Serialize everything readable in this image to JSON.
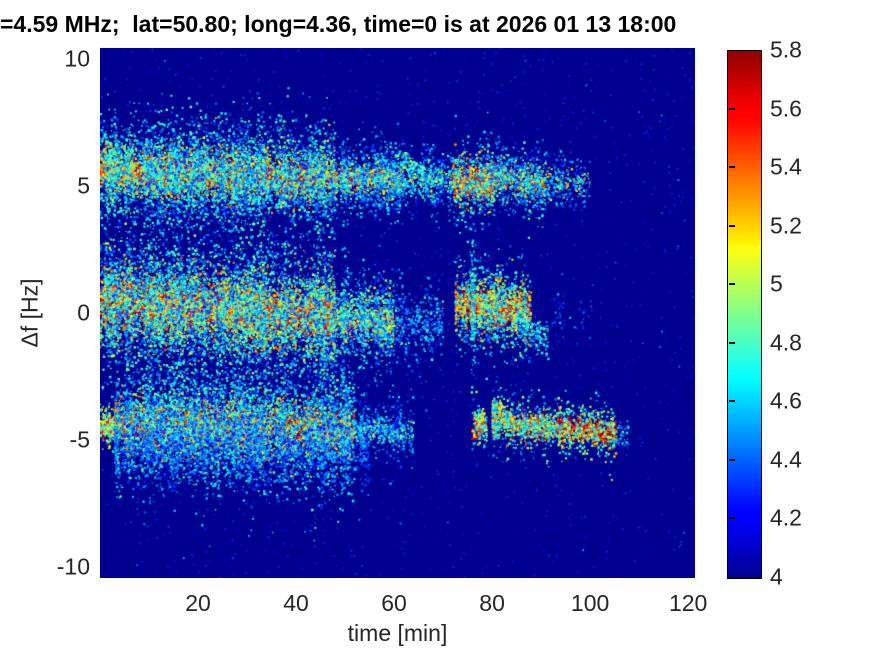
{
  "chart_data": {
    "type": "heatmap",
    "title": "=4.59 MHz;  lat=50.80; long=4.36, time=0 is at 2026 01 13 18:00",
    "xlabel": "time [min]",
    "ylabel": "Δf [Hz]",
    "xlim": [
      0,
      121.4
    ],
    "ylim": [
      -10.43,
      10.43
    ],
    "xticks": [
      20,
      40,
      60,
      80,
      100,
      120
    ],
    "yticks": [
      10,
      5,
      0,
      -5,
      -10
    ],
    "grid": false,
    "colorbar": {
      "position": "right",
      "min": 4,
      "max": 5.8,
      "ticks": [
        5.8,
        5.6,
        5.4,
        5.2,
        5,
        4.8,
        4.6,
        4.4,
        4.2,
        4
      ],
      "colormap": "jet",
      "background_value": 4.0
    },
    "colors": {
      "background_navy": "#00008F",
      "core_dark_red": "#8F0000",
      "text": "#262626",
      "title_text": "#000000"
    },
    "noise_layers": [
      {
        "count": 2600,
        "v": [
          4.02,
          4.38
        ]
      },
      {
        "count": 90,
        "v": [
          4.42,
          4.72
        ]
      }
    ],
    "bands": [
      {
        "name": "upper Doppler trace ~ +5.4 Hz",
        "segments": [
          {
            "t": [
              0,
              8
            ],
            "f": [
              5.65,
              5.55
            ],
            "layers": [
              {
                "sigma": 0.22,
                "density": 110,
                "v": [
                  5.45,
                  5.8
                ]
              },
              {
                "sigma": 0.5,
                "density": 90,
                "v": [
                  4.9,
                  5.5
                ]
              },
              {
                "sigma": 1.0,
                "density": 120,
                "v": [
                  4.3,
                  4.95
                ]
              }
            ]
          },
          {
            "t": [
              8,
              48
            ],
            "f": [
              5.55,
              5.3
            ],
            "layers": [
              {
                "sigma": 0.3,
                "density": 70,
                "v": [
                  5.3,
                  5.8
                ]
              },
              {
                "sigma": 0.55,
                "density": 80,
                "v": [
                  4.85,
                  5.45
                ]
              },
              {
                "sigma": 1.05,
                "density": 130,
                "v": [
                  4.25,
                  4.9
                ]
              }
            ]
          },
          {
            "t": [
              48,
              62
            ],
            "f": [
              5.3,
              5.25
            ],
            "layers": [
              {
                "sigma": 0.18,
                "density": 55,
                "v": [
                  5.2,
                  5.7
                ]
              },
              {
                "sigma": 0.4,
                "density": 50,
                "v": [
                  4.7,
                  5.2
                ]
              },
              {
                "sigma": 0.75,
                "density": 70,
                "v": [
                  4.25,
                  4.75
                ]
              }
            ]
          },
          {
            "t": [
              62,
              72
            ],
            "f": [
              5.3,
              5.2
            ],
            "layers": [
              {
                "sigma": 0.3,
                "density": 25,
                "v": [
                  4.6,
                  5.2
                ]
              },
              {
                "sigma": 0.6,
                "density": 45,
                "v": [
                  4.25,
                  4.8
                ]
              }
            ]
          },
          {
            "t": [
              62,
              66
            ],
            "f": [
              6.1,
              5.6
            ],
            "layers": [
              {
                "sigma": 0.1,
                "density": 28,
                "v": [
                  4.5,
                  5.0
                ]
              }
            ]
          },
          {
            "t": [
              72,
              80.5
            ],
            "f": [
              5.25,
              5.15
            ],
            "layers": [
              {
                "sigma": 0.28,
                "density": 95,
                "v": [
                  5.4,
                  5.8
                ]
              },
              {
                "sigma": 0.5,
                "density": 70,
                "v": [
                  4.8,
                  5.4
                ]
              },
              {
                "sigma": 0.8,
                "density": 60,
                "v": [
                  4.3,
                  4.85
                ]
              }
            ]
          },
          {
            "t": [
              80.5,
              91
            ],
            "f": [
              5.4,
              5.0
            ],
            "layers": [
              {
                "sigma": 0.25,
                "density": 40,
                "v": [
                  5.0,
                  5.65
                ]
              },
              {
                "sigma": 0.5,
                "density": 55,
                "v": [
                  4.4,
                  5.0
                ]
              },
              {
                "sigma": 0.8,
                "density": 30,
                "v": [
                  4.25,
                  4.6
                ]
              }
            ]
          },
          {
            "t": [
              91,
              100
            ],
            "f": [
              5.2,
              5.1
            ],
            "layers": [
              {
                "sigma": 0.3,
                "density": 18,
                "v": [
                  4.5,
                  5.3
                ]
              },
              {
                "sigma": 0.6,
                "density": 25,
                "v": [
                  4.25,
                  4.7
                ]
              }
            ]
          }
        ]
      },
      {
        "name": "central Doppler trace ~ 0 Hz",
        "segments": [
          {
            "t": [
              0,
              48
            ],
            "f": [
              0.45,
              -0.2
            ],
            "layers": [
              {
                "sigma": 0.38,
                "density": 120,
                "v": [
                  5.45,
                  5.8
                ]
              },
              {
                "sigma": 0.75,
                "density": 110,
                "v": [
                  4.9,
                  5.5
                ]
              },
              {
                "sigma": 1.35,
                "density": 150,
                "v": [
                  4.25,
                  4.95
                ]
              }
            ]
          },
          {
            "t": [
              48,
              60
            ],
            "f": [
              -0.25,
              -0.45
            ],
            "layers": [
              {
                "sigma": 0.3,
                "density": 55,
                "v": [
                  5.1,
                  5.7
                ]
              },
              {
                "sigma": 0.6,
                "density": 60,
                "v": [
                  4.7,
                  5.2
                ]
              },
              {
                "sigma": 1.0,
                "density": 80,
                "v": [
                  4.25,
                  4.8
                ]
              }
            ]
          },
          {
            "t": [
              60,
              70
            ],
            "f": [
              -0.45,
              -0.5
            ],
            "layers": [
              {
                "sigma": 0.5,
                "density": 22,
                "v": [
                  4.4,
                  4.9
                ]
              },
              {
                "sigma": 0.9,
                "density": 25,
                "v": [
                  4.2,
                  4.6
                ]
              }
            ]
          },
          {
            "t": [
              72.5,
              88
            ],
            "f": [
              0.35,
              0.05
            ],
            "layers": [
              {
                "sigma": 0.3,
                "density": 95,
                "v": [
                  5.4,
                  5.8
                ]
              },
              {
                "sigma": 0.55,
                "density": 75,
                "v": [
                  4.85,
                  5.4
                ]
              },
              {
                "sigma": 0.95,
                "density": 60,
                "v": [
                  4.3,
                  4.9
                ]
              }
            ]
          },
          {
            "t": [
              75.8,
              76.6
            ],
            "f": [
              0.3,
              0.3
            ],
            "layers": [
              {
                "sigma": 1.5,
                "density": 350,
                "v": [
                  4.4,
                  4.9
                ]
              }
            ]
          },
          {
            "t": [
              85,
              91.5
            ],
            "f": [
              -0.3,
              -1.2
            ],
            "layers": [
              {
                "sigma": 0.35,
                "density": 35,
                "v": [
                  4.35,
                  4.9
                ]
              }
            ]
          },
          {
            "t": [
              92,
              101
            ],
            "f": [
              0,
              -0.1
            ],
            "layers": [
              {
                "sigma": 0.5,
                "density": 6,
                "v": [
                  4.25,
                  4.6
                ]
              }
            ]
          }
        ]
      },
      {
        "name": "lower Doppler trace ~ -4.5 Hz",
        "segments": [
          {
            "t": [
              0,
              3
            ],
            "f": [
              -4.5,
              -4.45
            ],
            "layers": [
              {
                "sigma": 0.15,
                "density": 120,
                "v": [
                  5.3,
                  5.75
                ]
              },
              {
                "sigma": 0.4,
                "density": 60,
                "v": [
                  4.6,
                  5.2
                ]
              }
            ]
          },
          {
            "t": [
              3,
              52
            ],
            "f": [
              -4.4,
              -4.6
            ],
            "layers": [
              {
                "sigma": 0.3,
                "density": 75,
                "v": [
                  5.35,
                  5.8
                ]
              },
              {
                "sigma": 0.6,
                "density": 85,
                "v": [
                  4.85,
                  5.45
                ]
              },
              {
                "sigma": 1.15,
                "density": 130,
                "v": [
                  4.25,
                  4.9
                ]
              }
            ]
          },
          {
            "t": [
              3,
              55
            ],
            "f": [
              -5.1,
              -5.3
            ],
            "layers": [
              {
                "sigma": 0.8,
                "density": 45,
                "v": [
                  4.2,
                  4.6
                ]
              }
            ]
          },
          {
            "t": [
              52,
              64
            ],
            "f": [
              -4.6,
              -4.65
            ],
            "layers": [
              {
                "sigma": 0.3,
                "density": 25,
                "v": [
                  4.5,
                  5.1
                ]
              },
              {
                "sigma": 0.7,
                "density": 35,
                "v": [
                  4.2,
                  4.65
                ]
              }
            ]
          },
          {
            "t": [
              76,
              79
            ],
            "f": [
              -4.55,
              -4.55
            ],
            "layers": [
              {
                "sigma": 0.18,
                "density": 60,
                "v": [
                  5.1,
                  5.7
                ]
              },
              {
                "sigma": 0.45,
                "density": 35,
                "v": [
                  4.4,
                  5.0
                ]
              }
            ]
          },
          {
            "t": [
              76.5,
              78.5
            ],
            "f": [
              -4.1,
              -4.1
            ],
            "layers": [
              {
                "sigma": 0.12,
                "density": 30,
                "v": [
                  4.7,
                  5.3
                ]
              }
            ]
          },
          {
            "t": [
              80,
              84.5
            ],
            "f": [
              -3.6,
              -4.25
            ],
            "layers": [
              {
                "sigma": 0.15,
                "density": 45,
                "v": [
                  4.7,
                  5.35
                ]
              }
            ]
          },
          {
            "t": [
              80,
              93.5
            ],
            "f": [
              -4.35,
              -4.5
            ],
            "layers": [
              {
                "sigma": 0.28,
                "density": 55,
                "v": [
                  4.9,
                  5.6
                ]
              },
              {
                "sigma": 0.55,
                "density": 45,
                "v": [
                  4.4,
                  5.0
                ]
              }
            ]
          },
          {
            "t": [
              93.5,
              105.5
            ],
            "f": [
              -4.5,
              -4.8
            ],
            "layers": [
              {
                "sigma": 0.25,
                "density": 70,
                "v": [
                  5.2,
                  5.8
                ]
              },
              {
                "sigma": 0.5,
                "density": 45,
                "v": [
                  4.5,
                  5.1
                ]
              }
            ]
          },
          {
            "t": [
              105.5,
              108
            ],
            "f": [
              -4.8,
              -4.9
            ],
            "layers": [
              {
                "sigma": 0.3,
                "density": 25,
                "v": [
                  4.3,
                  4.8
                ]
              }
            ]
          }
        ]
      }
    ]
  }
}
